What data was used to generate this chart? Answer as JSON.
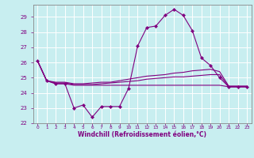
{
  "xlabel": "Windchill (Refroidissement éolien,°C)",
  "background_color": "#c8eef0",
  "grid_color": "#ffffff",
  "line_color": "#800080",
  "hours": [
    0,
    1,
    2,
    3,
    4,
    5,
    6,
    7,
    8,
    9,
    10,
    11,
    12,
    13,
    14,
    15,
    16,
    17,
    18,
    19,
    20,
    21,
    22,
    23
  ],
  "windchill": [
    26.1,
    24.8,
    24.6,
    24.6,
    23.0,
    23.2,
    22.4,
    23.1,
    23.1,
    23.1,
    24.3,
    27.1,
    28.3,
    28.4,
    29.1,
    29.5,
    29.1,
    28.1,
    26.3,
    25.8,
    25.0,
    24.4,
    24.4,
    24.4
  ],
  "line2": [
    26.1,
    24.8,
    24.7,
    24.7,
    24.6,
    24.6,
    24.65,
    24.7,
    24.7,
    24.8,
    24.9,
    25.0,
    25.1,
    25.15,
    25.2,
    25.3,
    25.35,
    25.45,
    25.5,
    25.55,
    25.4,
    24.45,
    24.45,
    24.45
  ],
  "line3": [
    26.1,
    24.8,
    24.65,
    24.65,
    24.55,
    24.55,
    24.55,
    24.6,
    24.65,
    24.7,
    24.75,
    24.8,
    24.9,
    24.95,
    25.0,
    25.05,
    25.05,
    25.1,
    25.15,
    25.2,
    25.2,
    24.4,
    24.4,
    24.4
  ],
  "line4": [
    26.1,
    24.8,
    24.6,
    24.6,
    24.5,
    24.5,
    24.5,
    24.5,
    24.5,
    24.5,
    24.5,
    24.5,
    24.5,
    24.5,
    24.5,
    24.5,
    24.5,
    24.5,
    24.5,
    24.5,
    24.5,
    24.4,
    24.4,
    24.4
  ],
  "ylim": [
    22,
    29.8
  ],
  "yticks": [
    22,
    23,
    24,
    25,
    26,
    27,
    28,
    29
  ],
  "xlim": [
    -0.5,
    23.5
  ],
  "marker": "D",
  "markersize": 2.2
}
